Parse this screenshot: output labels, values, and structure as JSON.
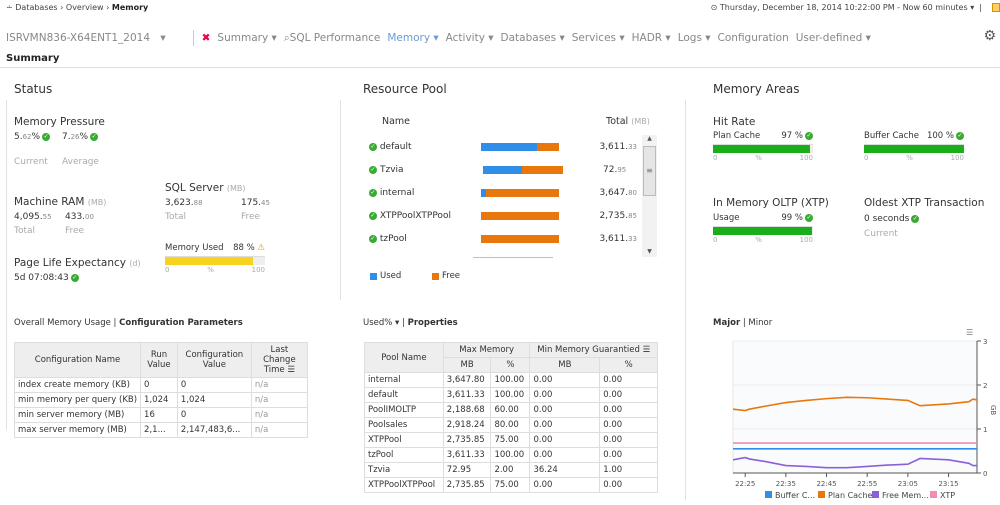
{
  "breadcrumb": {
    "items": [
      "Databases",
      "Overview"
    ],
    "current": "Memory"
  },
  "timebar": {
    "text": "Thursday, December 18, 2014 10:22:00 PM - Now 60 minutes"
  },
  "server": "ISRVMN836-X64ENT1_2014",
  "nav": [
    {
      "label": "Summary",
      "dropdown": true
    },
    {
      "label": "SQL Performance"
    },
    {
      "label": "Memory",
      "dropdown": true,
      "active": true
    },
    {
      "label": "Activity",
      "dropdown": true
    },
    {
      "label": "Databases",
      "dropdown": true
    },
    {
      "label": "Services",
      "dropdown": true
    },
    {
      "label": "HADR",
      "dropdown": true
    },
    {
      "label": "Logs",
      "dropdown": true
    },
    {
      "label": "Configuration"
    },
    {
      "label": "User-defined",
      "dropdown": true
    }
  ],
  "page_title": "Summary",
  "status": {
    "title": "Status",
    "memory_pressure": {
      "label": "Memory Pressure",
      "current_int": "5.",
      "current_dec": "62",
      "average_int": "7.",
      "average_dec": "26",
      "pct": "%",
      "current_label": "Current",
      "average_label": "Average"
    },
    "machine_ram": {
      "label": "Machine RAM",
      "unit": "(MB)",
      "total_int": "4,095.",
      "total_dec": "55",
      "free_int": "433.",
      "free_dec": "00",
      "total_label": "Total",
      "free_label": "Free"
    },
    "sql_server": {
      "label": "SQL Server",
      "unit": "(MB)",
      "total_int": "3,623.",
      "total_dec": "88",
      "free_int": "175.",
      "free_dec": "45",
      "total_label": "Total",
      "free_label": "Free"
    },
    "memory_used": {
      "label": "Memory Used",
      "value": "88 %",
      "percent": 88,
      "color": "#f7d21e"
    },
    "ple": {
      "label": "Page Life Expectancy",
      "unit": "(d)",
      "value": "5d 07:08:43"
    },
    "scale": {
      "min": "0",
      "mid": "%",
      "max": "100"
    },
    "tabs": {
      "first": "Overall Memory Usage",
      "second": "Configuration Parameters"
    },
    "config_table": {
      "headers": [
        "Configuration Name",
        "Run Value",
        "Configuration Value",
        "Last Change Time"
      ],
      "rows": [
        [
          "index create memory (KB)",
          "0",
          "0",
          "n/a"
        ],
        [
          "min memory per query (KB)",
          "1,024",
          "1,024",
          "n/a"
        ],
        [
          "min server memory (MB)",
          "16",
          "0",
          "n/a"
        ],
        [
          "max server memory (MB)",
          "2,1...",
          "2,147,483,6...",
          "n/a"
        ]
      ]
    }
  },
  "resource_pool": {
    "title": "Resource Pool",
    "name_header": "Name",
    "total_header": "Total",
    "total_unit": "(MB)",
    "pools": [
      {
        "name": "default",
        "total_int": "3,611.",
        "total_dec": "33",
        "used_pct": 72
      },
      {
        "name": "Tzvia",
        "total_int": "72.",
        "total_dec": "95",
        "used_pct": 49
      },
      {
        "name": "internal",
        "total_int": "3,647.",
        "total_dec": "80",
        "used_pct": 6
      },
      {
        "name": "XTPPoolXTPPool",
        "total_int": "2,735.",
        "total_dec": "85",
        "used_pct": 0
      },
      {
        "name": "tzPool",
        "total_int": "3,611.",
        "total_dec": "33",
        "used_pct": 0
      }
    ],
    "legend": {
      "used": "Used",
      "free": "Free"
    },
    "colors": {
      "used": "#2e8ee8",
      "free": "#e8780d"
    },
    "tabs": {
      "first": "Used%",
      "second": "Properties"
    },
    "props_table": {
      "pool_name": "Pool Name",
      "max_memory": "Max Memory",
      "min_memory": "Min Memory Guarantied",
      "mb": "MB",
      "pct": "%",
      "rows": [
        [
          "internal",
          "3,647.80",
          "100.00",
          "0.00",
          "0.00"
        ],
        [
          "default",
          "3,611.33",
          "100.00",
          "0.00",
          "0.00"
        ],
        [
          "PoolIMOLTP",
          "2,188.68",
          "60.00",
          "0.00",
          "0.00"
        ],
        [
          "Poolsales",
          "2,918.24",
          "80.00",
          "0.00",
          "0.00"
        ],
        [
          "XTPPool",
          "2,735.85",
          "75.00",
          "0.00",
          "0.00"
        ],
        [
          "tzPool",
          "3,611.33",
          "100.00",
          "0.00",
          "0.00"
        ],
        [
          "Tzvia",
          "72.95",
          "2.00",
          "36.24",
          "1.00"
        ],
        [
          "XTPPoolXTPPool",
          "2,735.85",
          "75.00",
          "0.00",
          "0.00"
        ]
      ]
    }
  },
  "memory_areas": {
    "title": "Memory Areas",
    "hit_rate": {
      "label": "Hit Rate",
      "plan_cache": {
        "label": "Plan Cache",
        "value": "97 %",
        "percent": 97
      },
      "buffer_cache": {
        "label": "Buffer Cache",
        "value": "100 %",
        "percent": 100
      }
    },
    "xtp": {
      "label": "In Memory OLTP (XTP)",
      "usage_label": "Usage",
      "value": "99 %",
      "percent": 99
    },
    "oldest": {
      "label": "Oldest XTP Transaction",
      "value": "0 seconds",
      "sub": "Current"
    },
    "bar_color": "#1aaf1a",
    "tabs": {
      "first": "Major",
      "second": "Minor"
    }
  },
  "chart_data": {
    "type": "line",
    "ylabel": "GB",
    "ylim": [
      0,
      3
    ],
    "yticks": [
      "0",
      "1",
      "2",
      "3"
    ],
    "xticks": [
      "22:25",
      "22:35",
      "22:45",
      "22:55",
      "23:05",
      "23:15"
    ],
    "grid": true,
    "legend_placement": "bottom",
    "x": [
      "22:22",
      "22:25",
      "22:26",
      "22:30",
      "22:35",
      "22:40",
      "22:45",
      "22:50",
      "22:55",
      "23:00",
      "23:05",
      "23:08",
      "23:15",
      "23:20",
      "23:21",
      "23:22"
    ],
    "series": [
      {
        "name": "Buffer C...",
        "color": "#2e8ee8",
        "values": [
          0.55,
          0.55,
          0.55,
          0.55,
          0.55,
          0.55,
          0.55,
          0.55,
          0.55,
          0.55,
          0.55,
          0.55,
          0.55,
          0.55,
          0.55,
          0.55
        ]
      },
      {
        "name": "Plan Cache",
        "color": "#e8780d",
        "values": [
          1.45,
          1.42,
          1.45,
          1.52,
          1.6,
          1.65,
          1.69,
          1.72,
          1.71,
          1.68,
          1.65,
          1.53,
          1.57,
          1.62,
          1.68,
          1.66
        ]
      },
      {
        "name": "Free Mem...",
        "color": "#8a60d8",
        "values": [
          0.3,
          0.35,
          0.32,
          0.26,
          0.17,
          0.15,
          0.12,
          0.12,
          0.15,
          0.18,
          0.2,
          0.33,
          0.3,
          0.22,
          0.17,
          0.17
        ]
      },
      {
        "name": "XTP",
        "color": "#f28cb0",
        "values": [
          0.68,
          0.68,
          0.68,
          0.68,
          0.68,
          0.68,
          0.68,
          0.68,
          0.68,
          0.68,
          0.68,
          0.68,
          0.68,
          0.68,
          0.68,
          0.68
        ]
      }
    ]
  }
}
